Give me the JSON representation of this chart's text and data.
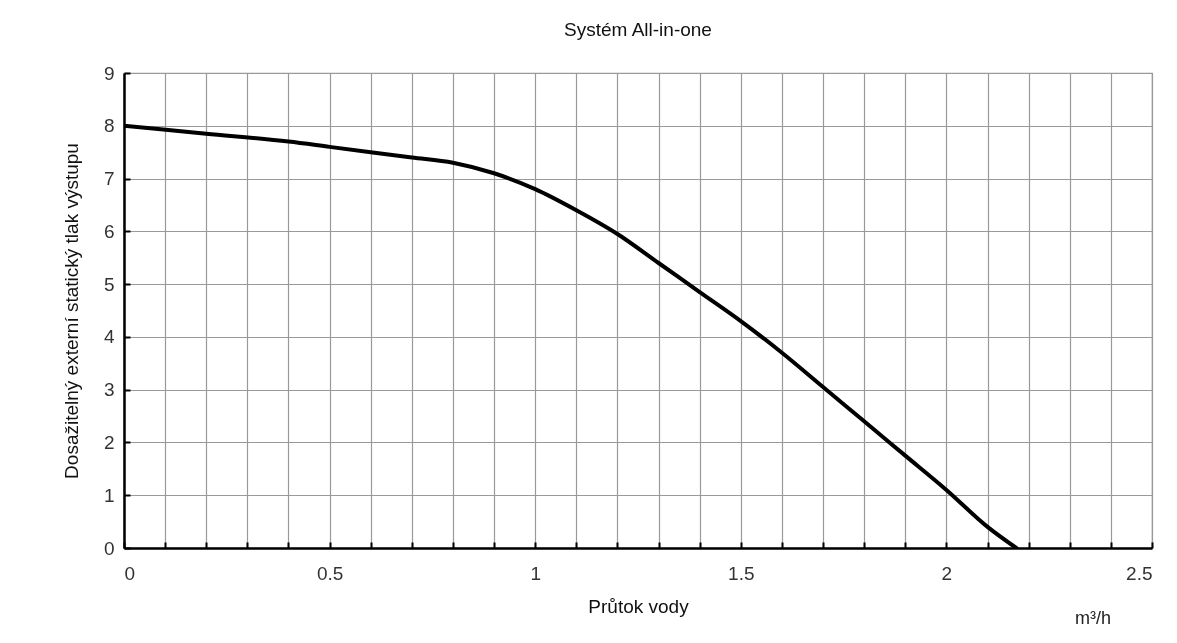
{
  "chart_data": {
    "type": "line",
    "title": "Systém All-in-one",
    "xlabel": "Průtok vody",
    "ylabel": "Dosažitelný externí statický tlak výstupu",
    "annotations": [
      "m³/h"
    ],
    "x": [
      0,
      0.2,
      0.4,
      0.5,
      0.7,
      0.8,
      0.9,
      1.0,
      1.1,
      1.2,
      1.3,
      1.4,
      1.5,
      1.6,
      1.7,
      1.8,
      1.9,
      2.0,
      2.1,
      2.17
    ],
    "series": [
      {
        "color": "#000000",
        "values": [
          8,
          7.85,
          7.7,
          7.6,
          7.4,
          7.3,
          7.1,
          6.8,
          6.4,
          5.95,
          5.4,
          4.85,
          4.3,
          3.7,
          3.05,
          2.4,
          1.75,
          1.1,
          0.4,
          0
        ]
      }
    ],
    "xlim": [
      0,
      2.5
    ],
    "ylim": [
      0,
      9
    ],
    "xticks": [
      0,
      {
        "value": 0.1,
        "label": null
      },
      {
        "value": 0.2,
        "label": null
      },
      {
        "value": 0.3,
        "label": null
      },
      {
        "value": 0.4,
        "label": null
      },
      0.5,
      {
        "value": 0.6,
        "label": null
      },
      {
        "value": 0.7,
        "label": null
      },
      {
        "value": 0.8,
        "label": null
      },
      {
        "value": 0.9,
        "label": null
      },
      1,
      {
        "value": 1.1,
        "label": null
      },
      {
        "value": 1.2,
        "label": null
      },
      {
        "value": 1.3,
        "label": null
      },
      {
        "value": 1.4,
        "label": null
      },
      1.5,
      {
        "value": 1.6,
        "label": null
      },
      {
        "value": 1.7,
        "label": null
      },
      {
        "value": 1.8,
        "label": null
      },
      {
        "value": 1.9,
        "label": null
      },
      2,
      {
        "value": 2.1,
        "label": null
      },
      {
        "value": 2.2,
        "label": null
      },
      {
        "value": 2.3,
        "label": null
      },
      {
        "value": 2.4,
        "label": null
      },
      2.5
    ],
    "yticks": [
      0,
      1,
      2,
      3,
      4,
      5,
      6,
      7,
      8,
      9
    ],
    "grid": true,
    "marker": "none",
    "line_style": "solid"
  }
}
